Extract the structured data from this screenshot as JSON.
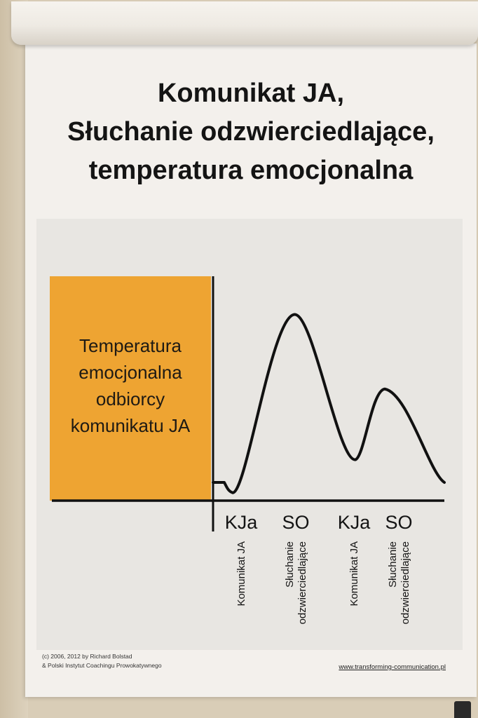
{
  "title": {
    "lines": [
      "Komunikat JA,",
      "Słuchanie odzwierciedlające,",
      "temperatura emocjonalna"
    ]
  },
  "diagram": {
    "y_label_lines": [
      "Temperatura",
      "emocjonalna",
      "odbiorcy",
      "komunikatu JA"
    ],
    "x_ticks": [
      {
        "short": "KJa",
        "long_lines": [
          "Komunikat JA"
        ]
      },
      {
        "short": "SO",
        "long_lines": [
          "Słuchanie",
          "odzwierciedlające"
        ]
      },
      {
        "short": "KJa",
        "long_lines": [
          "Komunikat JA"
        ]
      },
      {
        "short": "SO",
        "long_lines": [
          "Słuchanie",
          "odzwierciedlające"
        ]
      }
    ]
  },
  "chart_data": {
    "type": "line",
    "title": "",
    "xlabel": "",
    "ylabel": "Temperatura emocjonalna odbiorcy komunikatu JA",
    "categories": [
      "KJa",
      "SO",
      "KJa",
      "SO"
    ],
    "series": [
      {
        "values": [
          0.05,
          1.0,
          0.22,
          0.6
        ]
      }
    ],
    "ylim": [
      0,
      1.1
    ],
    "grid": false
  },
  "footer": {
    "copyright_lines": [
      "(c) 2006, 2012 by Richard Bolstad",
      "& Polski Instytut Coachingu Prowokatywnego"
    ],
    "website": "www.transforming-communication.pl"
  },
  "colors": {
    "paper": "#f3f0ec",
    "panel": "#e8e6e2",
    "orange_box": "#eea432",
    "ink": "#141414",
    "wall": "#d9cdb7"
  }
}
